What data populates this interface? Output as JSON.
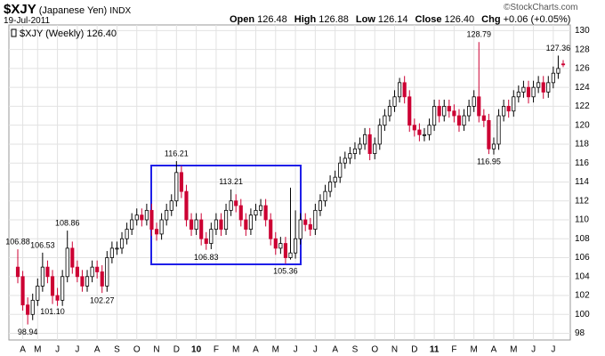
{
  "header": {
    "symbol": "$XJY",
    "name": "(Japanese Yen)",
    "exchange": "INDX",
    "date": "19-Jul-2011",
    "quote": [
      {
        "label": "Open",
        "value": "126.48"
      },
      {
        "label": "High",
        "value": "126.88"
      },
      {
        "label": "Low",
        "value": "126.14"
      },
      {
        "label": "Close",
        "value": "126.40"
      },
      {
        "label": "Chg",
        "value": "+0.06 (+0.05%)"
      }
    ],
    "credit": "©StockCharts.com"
  },
  "chart_data": {
    "type": "candlestick",
    "legend": "$XJY (Weekly) 126.40",
    "up_color": "#ffffff",
    "down_color": "#cc0033",
    "outline_color": "#000000",
    "grid": true,
    "ylim": [
      97.3,
      130.6
    ],
    "yticks": [
      98,
      100,
      102,
      104,
      106,
      108,
      110,
      112,
      114,
      116,
      118,
      120,
      122,
      124,
      126,
      128,
      130
    ],
    "categories": [
      null,
      "A",
      null,
      null,
      "M",
      null,
      null,
      null,
      "J",
      null,
      null,
      null,
      "J",
      null,
      null,
      null,
      "A",
      null,
      null,
      null,
      "S",
      null,
      null,
      null,
      "O",
      null,
      null,
      null,
      "N",
      null,
      null,
      null,
      "D",
      null,
      null,
      null,
      "10",
      null,
      null,
      null,
      "F",
      null,
      null,
      null,
      "M",
      null,
      null,
      null,
      "A",
      null,
      null,
      null,
      "M",
      null,
      null,
      null,
      "J",
      null,
      null,
      null,
      "J",
      null,
      null,
      null,
      "A",
      null,
      null,
      null,
      "S",
      null,
      null,
      null,
      "O",
      null,
      null,
      null,
      "N",
      null,
      null,
      null,
      "D",
      null,
      null,
      null,
      "11",
      null,
      null,
      null,
      "F",
      null,
      null,
      null,
      "M",
      null,
      null,
      null,
      "A",
      null,
      null,
      null,
      "M",
      null,
      null,
      null,
      "J",
      null,
      null,
      null,
      "J",
      null,
      null
    ],
    "open": [
      105,
      104,
      101,
      100,
      101.5,
      103,
      105,
      104,
      102,
      101.5,
      104,
      107,
      105,
      104,
      103,
      104,
      105,
      104.5,
      103,
      106,
      107,
      107,
      108,
      109,
      110,
      110.5,
      110,
      111,
      109,
      108.5,
      110,
      111,
      112,
      115,
      113,
      110,
      109,
      110,
      108,
      107.5,
      109,
      110,
      109,
      111,
      112,
      111.5,
      110,
      109,
      110.5,
      111,
      111.5,
      110,
      108,
      107,
      107.5,
      106,
      106.5,
      108,
      110,
      109.5,
      109,
      111,
      112,
      113,
      114,
      114.5,
      116,
      116.5,
      117,
      117.5,
      118,
      119,
      117,
      118,
      120,
      121,
      122,
      123,
      124.5,
      123,
      120,
      119.5,
      119,
      119,
      120,
      122,
      121,
      122,
      121.5,
      121,
      120,
      121,
      122,
      123,
      121,
      120.5,
      117.5,
      118,
      121,
      122,
      121.5,
      123,
      123.5,
      124,
      123,
      124,
      124.5,
      123.5,
      124.5,
      125.5,
      126.48
    ],
    "high": [
      106.88,
      104.6,
      101.8,
      102.2,
      103.8,
      106.53,
      105.7,
      104.7,
      102.8,
      104.7,
      108.86,
      107.7,
      105.7,
      104.7,
      104.7,
      105.7,
      105.7,
      105.2,
      106.7,
      107.7,
      107.7,
      108.7,
      109.7,
      110.7,
      111.2,
      111.2,
      111.7,
      111.7,
      109.7,
      110.7,
      111.7,
      112.7,
      116.21,
      115.7,
      113.7,
      110.7,
      110.7,
      110.7,
      108.7,
      109.7,
      110.7,
      110.7,
      111.7,
      113.21,
      112.7,
      112.2,
      110.7,
      111.2,
      111.7,
      112.2,
      112.2,
      110.7,
      108.7,
      108.2,
      108.2,
      113.4,
      111,
      110.7,
      110.7,
      110.2,
      111.7,
      112.7,
      113.7,
      114.7,
      115.2,
      116.7,
      117.2,
      117.7,
      118.2,
      118.7,
      119.7,
      119.7,
      118.7,
      120.7,
      121.7,
      122.7,
      123.7,
      125,
      125.2,
      123.7,
      120.7,
      120.2,
      119.7,
      120.7,
      122.7,
      122.7,
      122.7,
      122.7,
      122.2,
      121.7,
      121.7,
      122.7,
      123.7,
      128.79,
      121.7,
      121.2,
      118.7,
      121.7,
      122.7,
      122.7,
      123.7,
      124.2,
      124.7,
      124.7,
      124.7,
      125.2,
      125.2,
      125.2,
      126.2,
      127.36,
      126.88
    ],
    "low": [
      103.3,
      100.4,
      98.94,
      99.4,
      100.9,
      102.4,
      103.3,
      101.1,
      100.9,
      100.9,
      103.4,
      104.3,
      103.4,
      102.4,
      102.4,
      103.4,
      103.8,
      102.27,
      102.4,
      105.4,
      106.3,
      106.4,
      107.4,
      108.4,
      109.4,
      109.3,
      109.4,
      108.3,
      107.8,
      107.9,
      109.4,
      110.4,
      111.4,
      112.3,
      109.3,
      108.3,
      108.4,
      107.3,
      106.83,
      106.9,
      108.4,
      108.3,
      108.4,
      110.4,
      110.8,
      109.3,
      108.3,
      108.4,
      109.9,
      110.4,
      109.3,
      107.3,
      106.3,
      106.4,
      105.36,
      105.8,
      105.9,
      107.4,
      108.8,
      108.3,
      108.4,
      110.4,
      111.4,
      112.4,
      113.4,
      113.9,
      115.4,
      115.9,
      116.4,
      116.9,
      117.4,
      116.3,
      116.4,
      117.4,
      119.4,
      120.4,
      121.4,
      122.4,
      122.3,
      119.3,
      118.8,
      118.3,
      118.3,
      118.4,
      119.4,
      120.3,
      120.4,
      120.8,
      120.3,
      119.3,
      119.4,
      120.4,
      121.4,
      120.3,
      119.8,
      116.95,
      116.9,
      117.4,
      120.4,
      120.8,
      120.9,
      122.4,
      122.9,
      122.3,
      122.4,
      123.4,
      122.8,
      122.9,
      123.9,
      124.9,
      126.14
    ],
    "close": [
      104,
      101,
      100,
      101.5,
      103,
      105,
      104,
      102,
      101.5,
      104,
      107,
      105,
      104,
      103,
      104,
      105,
      104.5,
      103,
      106,
      107,
      107,
      108,
      109,
      110,
      110.5,
      110,
      111,
      109,
      108.5,
      110,
      111,
      112,
      115,
      113,
      110,
      109,
      110,
      108,
      107.5,
      109,
      110,
      109,
      111,
      112,
      111.5,
      110,
      109,
      110.5,
      111,
      111.5,
      110,
      108,
      107,
      107.5,
      106,
      106.5,
      108,
      110,
      109.5,
      109,
      111,
      112,
      113,
      114,
      114.5,
      116,
      116.5,
      117,
      117.5,
      118,
      119,
      117,
      118,
      120,
      121,
      122,
      123,
      124.5,
      123,
      120,
      119.5,
      119,
      119,
      120,
      122,
      121,
      122,
      121.5,
      121,
      120,
      121,
      122,
      123,
      121,
      120.5,
      117.5,
      118,
      121,
      122,
      121.5,
      123,
      123.5,
      124,
      123,
      124,
      124.5,
      123.5,
      124.5,
      125.5,
      126,
      126.4
    ],
    "annotations": [
      {
        "label": "106.88",
        "value": 106.88
      },
      {
        "label": "98.94",
        "value": 98.94
      },
      {
        "label": "106.53",
        "value": 106.53
      },
      {
        "label": "101.10",
        "value": 101.1
      },
      {
        "label": "108.86",
        "value": 108.86
      },
      {
        "label": "102.27",
        "value": 102.27
      },
      {
        "label": "116.21",
        "value": 116.21
      },
      {
        "label": "106.83",
        "value": 106.83
      },
      {
        "label": "113.21",
        "value": 113.21
      },
      {
        "label": "105.36",
        "value": 105.36
      },
      {
        "label": "128.79",
        "value": 128.79
      },
      {
        "label": "116.95",
        "value": 116.95
      },
      {
        "label": "127.36",
        "value": 127.36
      }
    ]
  }
}
